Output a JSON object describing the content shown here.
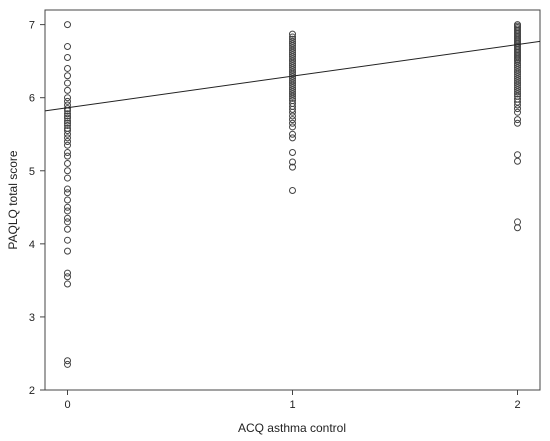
{
  "chart_data": {
    "type": "scatter",
    "title": "",
    "xlabel": "ACQ asthma control",
    "ylabel": "PAQLQ total score",
    "xlim": [
      -0.1,
      2.1
    ],
    "ylim": [
      2.0,
      7.2
    ],
    "x_ticks": [
      0,
      1,
      2
    ],
    "y_ticks": [
      2,
      3,
      4,
      5,
      6,
      7
    ],
    "grid": false,
    "legend": "none",
    "marker": "open-circle",
    "colors": {
      "point": "#444444",
      "fit_line": "#222222",
      "frame": "#444444"
    },
    "fit_line": {
      "x": [
        -0.1,
        2.1
      ],
      "y": [
        5.82,
        6.77
      ]
    },
    "series": [
      {
        "x": 0,
        "y": [
          7.0,
          6.7,
          6.55,
          6.4,
          6.3,
          6.2,
          6.1,
          6.0,
          5.95,
          5.9,
          5.85,
          5.82,
          5.78,
          5.75,
          5.72,
          5.68,
          5.65,
          5.62,
          5.58,
          5.55,
          5.5,
          5.45,
          5.4,
          5.35,
          5.25,
          5.2,
          5.1,
          5.0,
          4.9,
          4.75,
          4.7,
          4.6,
          4.5,
          4.45,
          4.35,
          4.3,
          4.2,
          4.05,
          3.9,
          3.6,
          3.55,
          3.45,
          2.4,
          2.35
        ]
      },
      {
        "x": 1,
        "y": [
          6.87,
          6.83,
          6.8,
          6.77,
          6.74,
          6.71,
          6.68,
          6.65,
          6.62,
          6.59,
          6.56,
          6.53,
          6.5,
          6.47,
          6.44,
          6.41,
          6.38,
          6.35,
          6.32,
          6.29,
          6.26,
          6.23,
          6.2,
          6.17,
          6.14,
          6.11,
          6.08,
          6.05,
          6.02,
          5.99,
          5.96,
          5.92,
          5.88,
          5.84,
          5.8,
          5.75,
          5.7,
          5.65,
          5.6,
          5.5,
          5.45,
          5.25,
          5.12,
          5.05,
          4.73
        ]
      },
      {
        "x": 2,
        "y": [
          7.0,
          6.98,
          6.96,
          6.94,
          6.92,
          6.9,
          6.88,
          6.86,
          6.84,
          6.82,
          6.8,
          6.78,
          6.76,
          6.74,
          6.72,
          6.7,
          6.68,
          6.66,
          6.64,
          6.62,
          6.6,
          6.58,
          6.56,
          6.54,
          6.52,
          6.5,
          6.47,
          6.44,
          6.41,
          6.38,
          6.35,
          6.32,
          6.29,
          6.26,
          6.23,
          6.2,
          6.17,
          6.14,
          6.11,
          6.08,
          6.05,
          6.02,
          5.98,
          5.94,
          5.9,
          5.85,
          5.8,
          5.7,
          5.65,
          5.22,
          5.13,
          4.3,
          4.22
        ]
      }
    ]
  }
}
